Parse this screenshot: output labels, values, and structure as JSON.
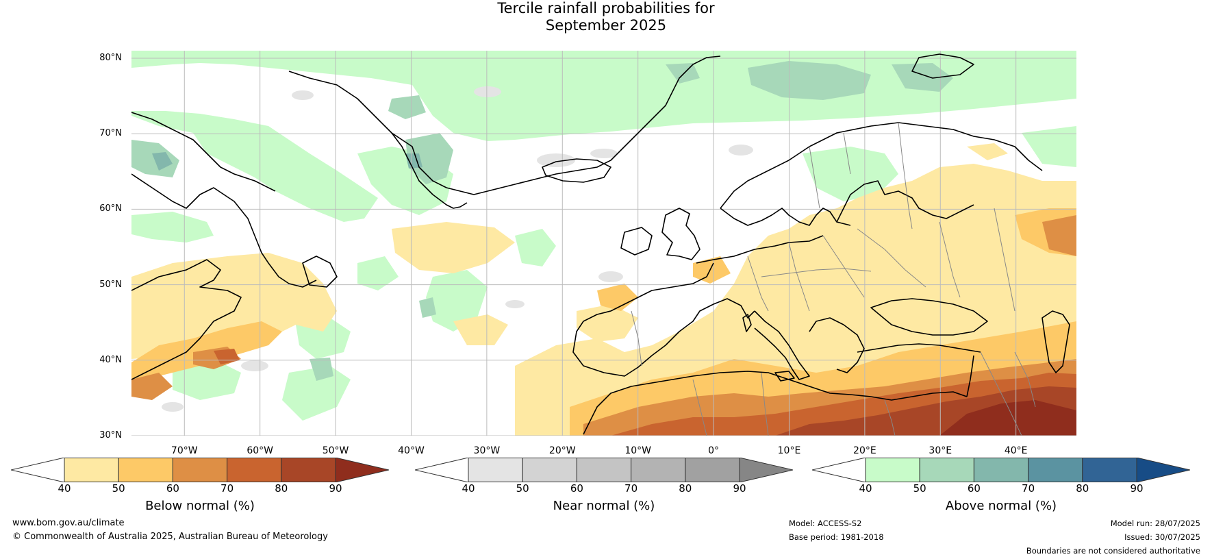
{
  "title": {
    "line1": "Tercile rainfall probabilities for",
    "line2": "September 2025"
  },
  "map": {
    "projection": "equirectangular",
    "extent": {
      "lon": [
        -77,
        48
      ],
      "lat": [
        30,
        81
      ]
    },
    "land_color": "#ffffff",
    "coast_color": "#000000",
    "border_color": "#888888",
    "grid_color": "#bbbbbb",
    "lat_labels": [
      {
        "lat": 80,
        "text": "80°N"
      },
      {
        "lat": 70,
        "text": "70°N"
      },
      {
        "lat": 60,
        "text": "60°N"
      },
      {
        "lat": 50,
        "text": "50°N"
      },
      {
        "lat": 40,
        "text": "40°N"
      },
      {
        "lat": 30,
        "text": "30°N"
      }
    ],
    "lon_labels": [
      {
        "lon": -70,
        "text": "70°W"
      },
      {
        "lon": -60,
        "text": "60°W"
      },
      {
        "lon": -50,
        "text": "50°W"
      },
      {
        "lon": -40,
        "text": "40°W"
      },
      {
        "lon": -30,
        "text": "30°W"
      },
      {
        "lon": -20,
        "text": "20°W"
      },
      {
        "lon": -10,
        "text": "10°W"
      },
      {
        "lon": 0,
        "text": "0°"
      },
      {
        "lon": 10,
        "text": "10°E"
      },
      {
        "lon": 20,
        "text": "20°E"
      },
      {
        "lon": 30,
        "text": "30°E"
      },
      {
        "lon": 40,
        "text": "40°E"
      }
    ]
  },
  "colorbars": [
    {
      "title": "Below normal (%)",
      "ticks": [
        "40",
        "50",
        "60",
        "70",
        "80",
        "90"
      ],
      "colors": [
        "#ffffff",
        "#fee9a3",
        "#fdc967",
        "#de8f45",
        "#c9642f",
        "#a84627",
        "#8f2d1d"
      ]
    },
    {
      "title": "Near normal (%)",
      "ticks": [
        "40",
        "50",
        "60",
        "70",
        "80",
        "90"
      ],
      "colors": [
        "#ffffff",
        "#e4e4e4",
        "#d3d3d3",
        "#c4c4c4",
        "#b3b3b3",
        "#a1a1a1",
        "#868686"
      ]
    },
    {
      "title": "Above normal (%)",
      "ticks": [
        "40",
        "50",
        "60",
        "70",
        "80",
        "90"
      ],
      "colors": [
        "#ffffff",
        "#c8fbc9",
        "#a7d8b9",
        "#83b7ac",
        "#5b93a1",
        "#316495",
        "#174c86"
      ]
    }
  ],
  "footer": {
    "website": "www.bom.gov.au/climate",
    "copyright": "© Commonwealth of Australia 2025, Australian Bureau of Meteorology",
    "model": "Model: ACCESS-S2",
    "base_period": "Base period: 1981-2018",
    "model_run": "Model run: 28/07/2025",
    "issued": "Issued: 30/07/2025",
    "disclaimer": "Boundaries are not considered authoritative"
  }
}
